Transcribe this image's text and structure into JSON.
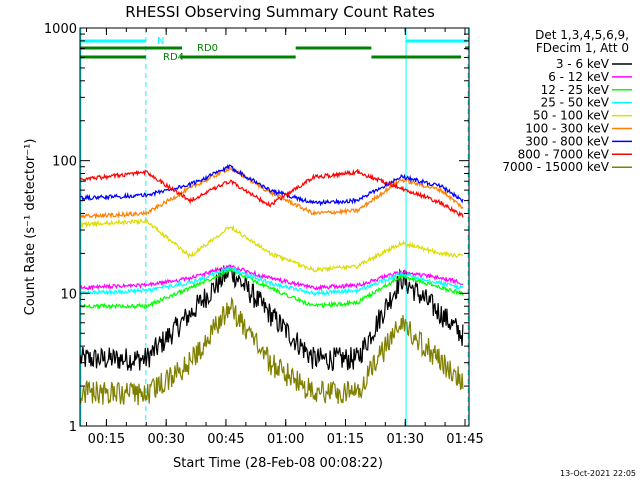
{
  "chart_data": {
    "type": "line",
    "title": "RHESSI Observing Summary Count Rates",
    "xlabel": "Start Time (28-Feb-08 00:08:22)",
    "ylabel": "Count Rate (s⁻¹ detector⁻¹)",
    "y_scale": "log",
    "ylim": [
      1,
      1000
    ],
    "xlim_minutes": [
      8.37,
      106
    ],
    "x_ticks": [
      {
        "minute": 15,
        "label": "00:15"
      },
      {
        "minute": 30,
        "label": "00:30"
      },
      {
        "minute": 45,
        "label": "00:45"
      },
      {
        "minute": 60,
        "label": "01:00"
      },
      {
        "minute": 75,
        "label": "01:15"
      },
      {
        "minute": 90,
        "label": "01:30"
      },
      {
        "minute": 105,
        "label": "01:45"
      }
    ],
    "y_ticks": [
      {
        "value": 1,
        "label": "1"
      },
      {
        "value": 10,
        "label": "10"
      },
      {
        "value": 100,
        "label": "100"
      },
      {
        "value": 1000,
        "label": "1000"
      }
    ],
    "legend": {
      "placement": "right",
      "header": [
        "Det 1,3,4,5,6,9,",
        "FDecim 1, Att 0"
      ]
    },
    "series": [
      {
        "name": "3 - 6 keV",
        "color": "#000000",
        "x": [
          8.5,
          25,
          36,
          46,
          56,
          67,
          78,
          89,
          99,
          104.5
        ],
        "values": [
          3.2,
          3.2,
          7,
          15,
          7,
          3.2,
          3.2,
          13,
          7,
          4.8
        ]
      },
      {
        "name": "6 - 12 keV",
        "color": "#ff00ff",
        "x": [
          8.5,
          25,
          36,
          46,
          56,
          67,
          78,
          89,
          99,
          104.5
        ],
        "values": [
          11,
          11.5,
          13,
          16,
          13,
          11,
          11.5,
          14.5,
          13,
          12
        ]
      },
      {
        "name": "12 - 25 keV",
        "color": "#00ff00",
        "x": [
          8.5,
          25,
          36,
          46,
          56,
          67,
          78,
          89,
          99,
          104.5
        ],
        "values": [
          8,
          8,
          11,
          15,
          11,
          8,
          8.5,
          13.5,
          11,
          10
        ]
      },
      {
        "name": "25 - 50 keV",
        "color": "#00ffff",
        "x": [
          8.5,
          25,
          36,
          46,
          56,
          67,
          78,
          89,
          99,
          104.5
        ],
        "values": [
          10,
          10.5,
          12,
          15.5,
          12,
          10,
          10.5,
          14,
          12,
          11
        ]
      },
      {
        "name": "50 - 100 keV",
        "color": "#dddd00",
        "x": [
          8.5,
          25,
          36,
          46,
          56,
          67,
          78,
          89,
          99,
          104.5
        ],
        "values": [
          33,
          35,
          19,
          32,
          20,
          15,
          16,
          24,
          20,
          19
        ]
      },
      {
        "name": "100 - 300 keV",
        "color": "#ff8000",
        "x": [
          8.5,
          25,
          36,
          46,
          56,
          67,
          78,
          89,
          99,
          104.5
        ],
        "values": [
          38,
          40,
          62,
          88,
          58,
          40,
          42,
          72,
          60,
          44
        ]
      },
      {
        "name": "300 - 800 keV",
        "color": "#0000ff",
        "x": [
          8.5,
          25,
          36,
          46,
          56,
          67,
          78,
          89,
          99,
          104.5
        ],
        "values": [
          52,
          55,
          66,
          90,
          60,
          48,
          50,
          76,
          64,
          50
        ]
      },
      {
        "name": "800 - 7000 keV",
        "color": "#ff0000",
        "x": [
          8.5,
          25,
          36,
          46,
          56,
          67,
          78,
          89,
          99,
          104.5
        ],
        "values": [
          72,
          82,
          50,
          70,
          46,
          75,
          82,
          62,
          48,
          38
        ]
      },
      {
        "name": "7000 - 15000 keV",
        "color": "#808000",
        "x": [
          8.5,
          25,
          36,
          46,
          56,
          67,
          78,
          89,
          99,
          104.5
        ],
        "values": [
          1.8,
          1.7,
          3,
          8,
          3,
          1.8,
          1.8,
          6,
          3,
          2.2
        ]
      }
    ],
    "event_markers": [
      {
        "minute": 8.6,
        "style": "solid",
        "color": "#00ffff"
      },
      {
        "minute": 24.9,
        "style": "dashed",
        "color": "#00ffff"
      },
      {
        "minute": 90.2,
        "style": "solid",
        "color": "#00ffff"
      },
      {
        "minute": 105.8,
        "style": "dashed",
        "color": "#00ffff"
      }
    ],
    "flag_bars": [
      {
        "label": "N",
        "color": "#00ffff",
        "row": 1,
        "segments": [
          [
            8.5,
            24.9
          ],
          [
            90.2,
            105.5
          ]
        ]
      },
      {
        "label": "RD0",
        "color": "#008000",
        "row": 2,
        "segments": [
          [
            8.5,
            34
          ],
          [
            62.5,
            81.5
          ],
          [
            105,
            106
          ]
        ]
      },
      {
        "label": "RD4",
        "color": "#008000",
        "row": 3,
        "segments": [
          [
            8.5,
            24.9
          ],
          [
            33.5,
            62.5
          ],
          [
            81.5,
            104
          ]
        ]
      }
    ],
    "footer_timestamp": "13-Oct-2021 22:05"
  }
}
